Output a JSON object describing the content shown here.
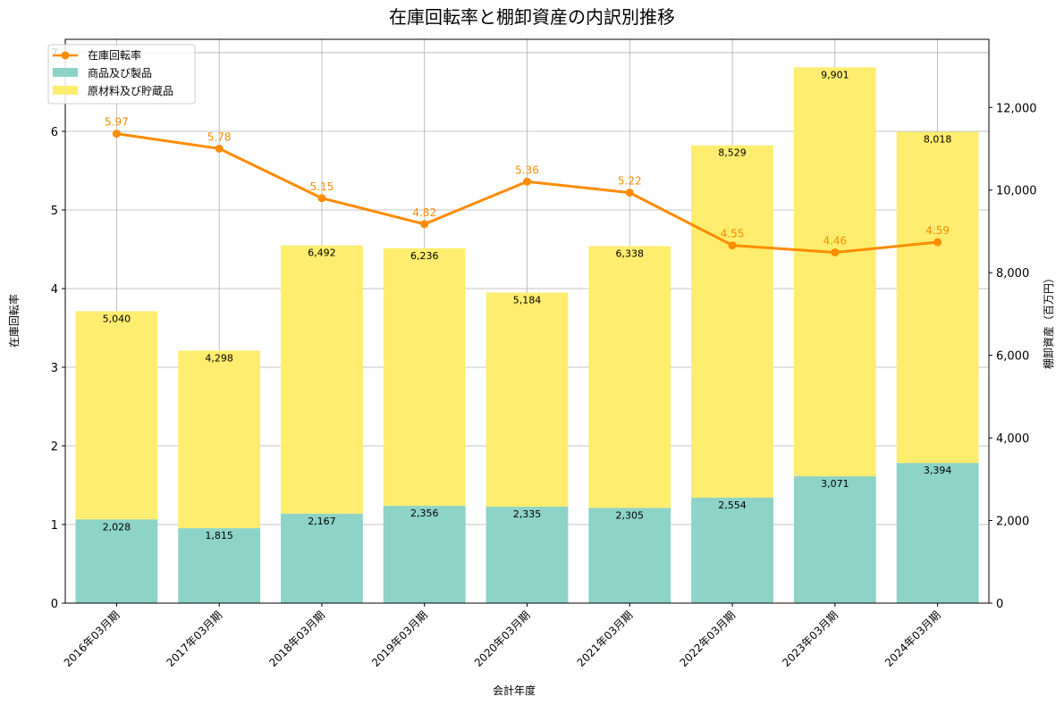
{
  "chart_data": {
    "type": "bar+line",
    "title": "在庫回転率と棚卸資産の内訳別推移",
    "xlabel": "会計年度",
    "ylabel_left": "在庫回転率",
    "ylabel_right": "棚卸資産（百万円）",
    "categories": [
      "2016年03月期",
      "2017年03月期",
      "2018年03月期",
      "2019年03月期",
      "2020年03月期",
      "2021年03月期",
      "2022年03月期",
      "2023年03月期",
      "2024年03月期"
    ],
    "ylim_left": [
      0,
      7.17
    ],
    "ylim_right": [
      0,
      13650
    ],
    "yticks_left": [
      0,
      1,
      2,
      3,
      4,
      5,
      6,
      7
    ],
    "yticks_right": [
      0,
      2000,
      4000,
      6000,
      8000,
      10000,
      12000
    ],
    "yticklabels_right": [
      "0",
      "2,000",
      "4,000",
      "6,000",
      "8,000",
      "10,000",
      "12,000"
    ],
    "grid": true,
    "legend_position": "top-left",
    "series": [
      {
        "name": "商品及び製品",
        "kind": "bar",
        "axis": "right",
        "color": "#8dd3c7",
        "values": [
          2028,
          1815,
          2167,
          2356,
          2335,
          2305,
          2554,
          3071,
          3394
        ],
        "labels": [
          "2,028",
          "1,815",
          "2,167",
          "2,356",
          "2,335",
          "2,305",
          "2,554",
          "3,071",
          "3,394"
        ]
      },
      {
        "name": "原材料及び貯蔵品",
        "kind": "bar-stacked",
        "axis": "right",
        "color": "#ffed6f",
        "values": [
          5040,
          4298,
          6492,
          6236,
          5184,
          6338,
          8529,
          9901,
          8018
        ],
        "labels": [
          "5,040",
          "4,298",
          "6,492",
          "6,236",
          "5,184",
          "6,338",
          "8,529",
          "9,901",
          "8,018"
        ]
      },
      {
        "name": "在庫回転率",
        "kind": "line",
        "axis": "left",
        "color": "#ff8c00",
        "values": [
          5.97,
          5.78,
          5.15,
          4.82,
          5.36,
          5.22,
          4.55,
          4.46,
          4.59
        ],
        "labels": [
          "5.97",
          "5.78",
          "5.15",
          "4.82",
          "5.36",
          "5.22",
          "4.55",
          "4.46",
          "4.59"
        ]
      }
    ]
  }
}
